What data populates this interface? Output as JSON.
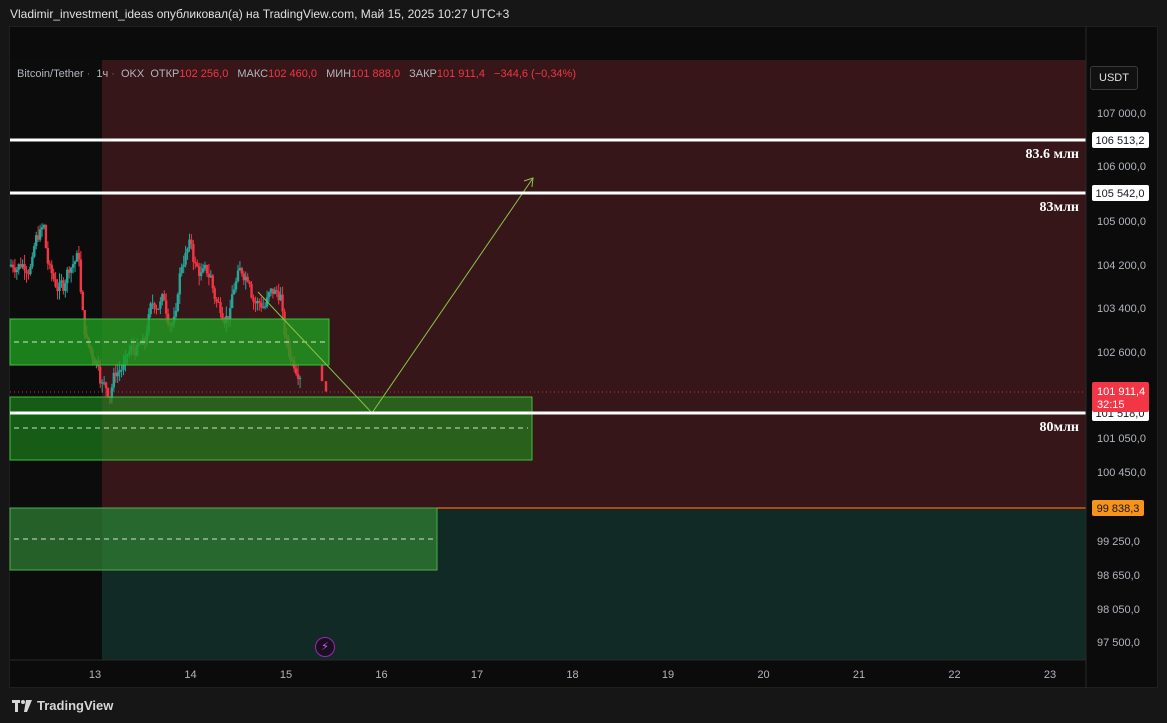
{
  "header": {
    "text": "Vladimir_investment_ideas опубликовал(а) на TradingView.com, Май 15, 2025 10:27 UTC+3"
  },
  "legend": {
    "symbol": "Bitcoin/Tether",
    "interval": "1ч",
    "exchange": "OKX",
    "open_label": "ОТКР",
    "open": "102 256,0",
    "high_label": "МАКС",
    "high": "102 460,0",
    "low_label": "МИН",
    "low": "101 888,0",
    "close_label": "ЗАКР",
    "close": "101 911,4",
    "change": "−344,6 (−0,34%)"
  },
  "currency_button": "USDT",
  "price_axis": {
    "labels": [
      "107 000,0",
      "106 000,0",
      "105 000,0",
      "104 200,0",
      "103 400,0",
      "102 600,0",
      "101 050,0",
      "100 450,0",
      "99 250,0",
      "98 650,0",
      "98 050,0",
      "97 500,0"
    ]
  },
  "levels": [
    {
      "price": 106513.2,
      "tag": "106 513,2",
      "note": "83.6 млн"
    },
    {
      "price": 105542.0,
      "tag": "105 542,0",
      "note": "83млн"
    },
    {
      "price": 101518.0,
      "tag": "101 518,0",
      "note": "80млн"
    }
  ],
  "current_price": {
    "value": "101 911,4",
    "countdown": "32:15"
  },
  "orange_level": {
    "tag": "99 838,3"
  },
  "time_axis": {
    "labels": [
      "13",
      "14",
      "15",
      "16",
      "17",
      "18",
      "19",
      "20",
      "21",
      "22",
      "23"
    ]
  },
  "colors": {
    "red_zone": "#361619",
    "green_zone": "#122a25",
    "bull": "#26a69a",
    "bear": "#f23645",
    "zone_fill": "#1f9e1f",
    "arrow": "#8bc34a",
    "orange": "#f7931a"
  },
  "footer": {
    "logo_text": "TradingView"
  }
}
